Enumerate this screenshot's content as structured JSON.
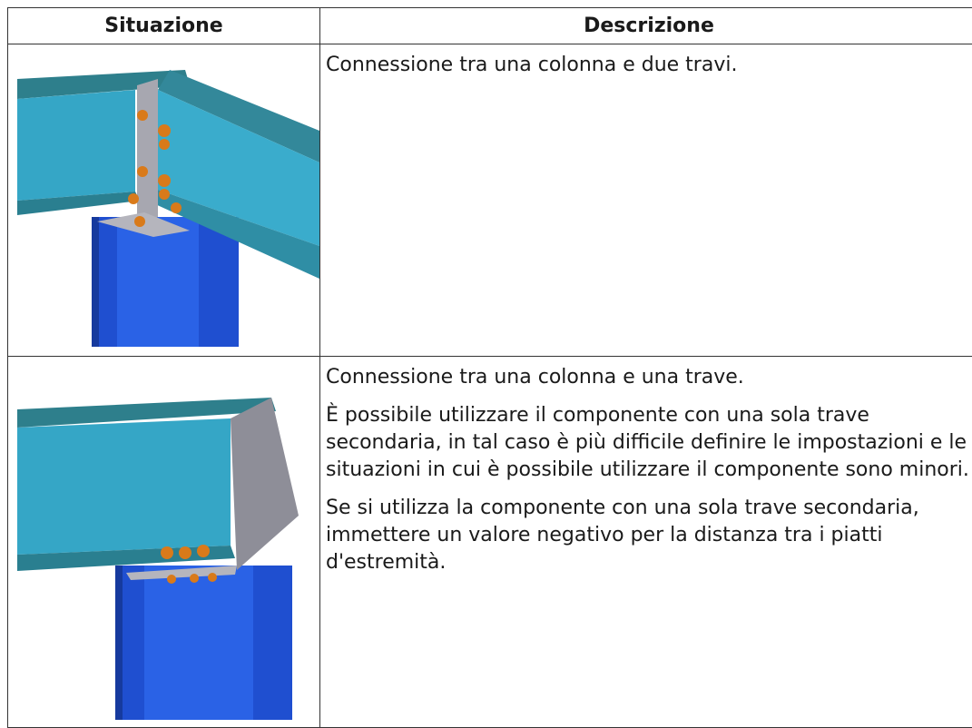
{
  "table": {
    "header": [
      "Situazione",
      "Descrizione"
    ],
    "rows": [
      {
        "description": [
          "Connessione tra una colonna e due travi."
        ]
      },
      {
        "description": [
          "Connessione tra una colonna e una trave.",
          "È possibile utilizzare il componente con una sola trave secondaria, in tal caso è più difficile definire le impostazioni e le situazioni in cui è possibile utilizzare il componente sono minori.",
          "Se si utilizza la componente con una sola trave secondaria, immettere un valore negativo per la distanza tra i piatti d'estremità."
        ]
      }
    ]
  }
}
